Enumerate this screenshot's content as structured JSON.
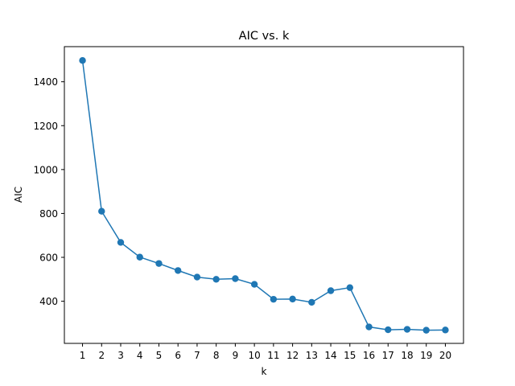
{
  "chart_data": {
    "type": "line",
    "title": "AIC vs. k",
    "xlabel": "k",
    "ylabel": "AIC",
    "x": [
      1,
      2,
      3,
      4,
      5,
      6,
      7,
      8,
      9,
      10,
      11,
      12,
      13,
      14,
      15,
      16,
      17,
      18,
      19,
      20
    ],
    "series": [
      {
        "values": [
          1497,
          810,
          668,
          601,
          572,
          540,
          510,
          500,
          503,
          477,
          409,
          410,
          395,
          448,
          462,
          283,
          270,
          272,
          268,
          269
        ],
        "color": "#1f77b4",
        "marker": "circle"
      }
    ],
    "xlim": [
      0.05,
      20.95
    ],
    "ylim": [
      208,
      1560
    ],
    "xticks": [
      1,
      2,
      3,
      4,
      5,
      6,
      7,
      8,
      9,
      10,
      11,
      12,
      13,
      14,
      15,
      16,
      17,
      18,
      19,
      20
    ],
    "yticks": [
      400,
      600,
      800,
      1000,
      1200,
      1400
    ],
    "grid": false,
    "legend": "none"
  }
}
